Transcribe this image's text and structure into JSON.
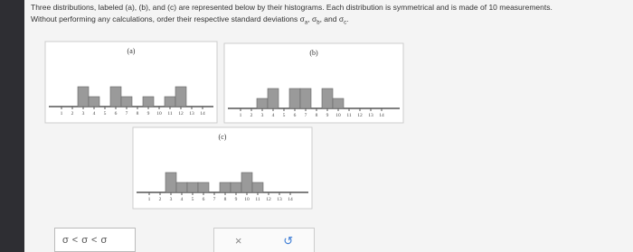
{
  "question": {
    "line1": "Three distributions, labeled (a), (b), and (c) are represented below by their histograms. Each distribution is symmetrical and is made of 10 measurements.",
    "line2_parts": [
      "Without performing any calculations, order their respective standard deviations σ",
      "a",
      ", σ",
      "b",
      ", and σ",
      "c",
      "."
    ]
  },
  "x_ticks": [
    1,
    2,
    3,
    4,
    5,
    6,
    7,
    8,
    9,
    10,
    11,
    12,
    13,
    14
  ],
  "histograms": [
    {
      "label": "(a)",
      "counts": [
        0,
        0,
        2,
        1,
        0,
        2,
        1,
        0,
        1,
        0,
        1,
        2,
        0,
        0
      ]
    },
    {
      "label": "(b)",
      "counts": [
        0,
        0,
        1,
        2,
        0,
        2,
        2,
        0,
        2,
        1,
        0,
        0,
        0,
        0
      ]
    },
    {
      "label": "(c)",
      "counts": [
        0,
        0,
        2,
        1,
        1,
        1,
        0,
        1,
        1,
        2,
        1,
        0,
        0,
        0
      ]
    }
  ],
  "answer": {
    "parts": [
      "σ",
      "<",
      "σ",
      "<",
      "σ"
    ]
  },
  "buttons": {
    "clear": "×",
    "undo": "↺"
  }
}
